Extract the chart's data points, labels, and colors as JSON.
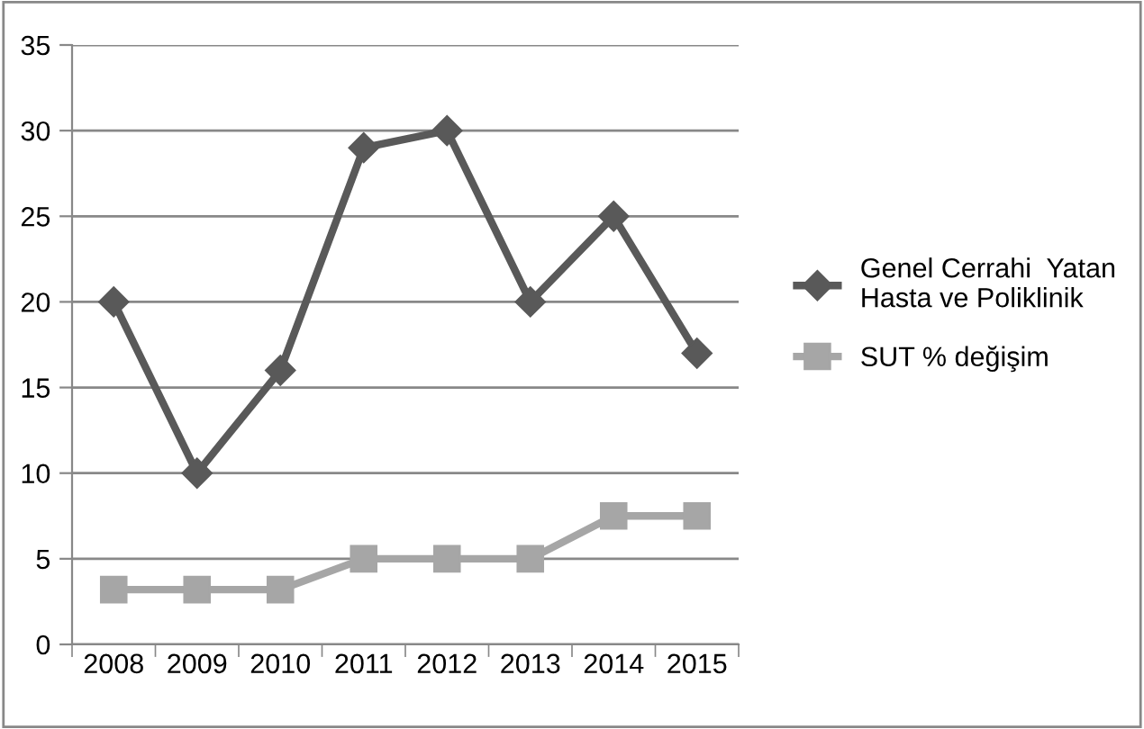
{
  "chart_data": {
    "type": "line",
    "categories": [
      "2008",
      "2009",
      "2010",
      "2011",
      "2012",
      "2013",
      "2014",
      "2015"
    ],
    "series": [
      {
        "name": "Genel Cerrahi  Yatan\nHasta ve Poliklinik",
        "color": "#595959",
        "marker": "diamond",
        "values": [
          20,
          10,
          16,
          29,
          30,
          20,
          25,
          17
        ]
      },
      {
        "name": "SUT % değişim",
        "color": "#a6a6a6",
        "marker": "square",
        "values": [
          3.2,
          3.2,
          3.2,
          5,
          5,
          5,
          7.5,
          7.5
        ]
      }
    ],
    "ylim": [
      0,
      35
    ],
    "yticks": [
      0,
      5,
      10,
      15,
      20,
      25,
      30,
      35
    ],
    "grid": "y",
    "legend": "right",
    "line_style": "solid"
  }
}
